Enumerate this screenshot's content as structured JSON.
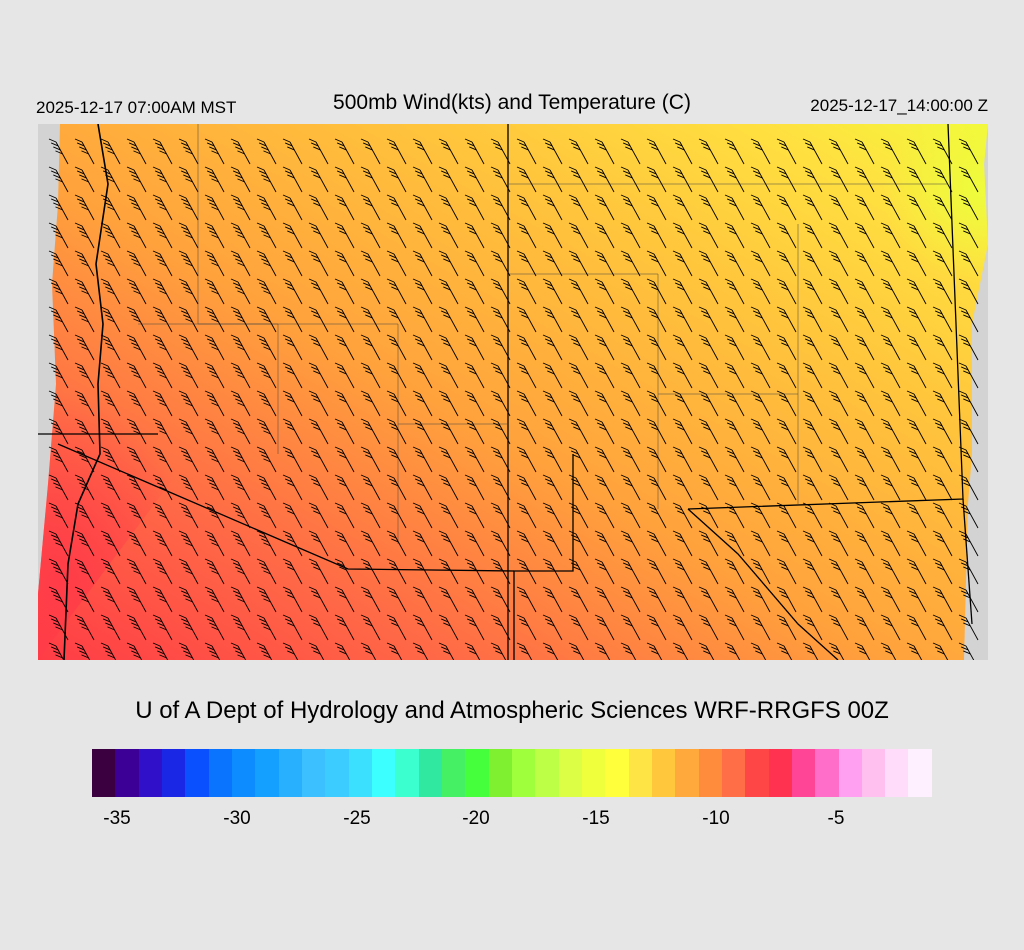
{
  "header": {
    "left": "2025-12-17 07:00AM MST",
    "title": "500mb Wind(kts) and Temperature (C)",
    "right": "2025-12-17_14:00:00 Z"
  },
  "credit": "U of A Dept of Hydrology and Atmospheric Sciences WRF-RRGFS 00Z",
  "colorbar": {
    "colors": [
      "#3b0040",
      "#3c0097",
      "#3010c8",
      "#1a28e6",
      "#0a50ff",
      "#0a74ff",
      "#0d8cff",
      "#14a0ff",
      "#28b0ff",
      "#3cc0ff",
      "#3cccff",
      "#3ce0ff",
      "#3cffff",
      "#3cffd0",
      "#30e8a0",
      "#46f064",
      "#46ff3c",
      "#7ef030",
      "#a0ff3c",
      "#bcff46",
      "#dcff46",
      "#f0ff3c",
      "#ffff3c",
      "#ffe446",
      "#ffc83c",
      "#ffa83c",
      "#ff8c3c",
      "#ff6e46",
      "#ff4646",
      "#ff3250",
      "#ff4696",
      "#ff6ec8",
      "#ffa0f0",
      "#ffc0f0",
      "#ffdcfa",
      "#fff0ff"
    ],
    "ticks": [
      "-35",
      "-30",
      "-25",
      "-20",
      "-15",
      "-10",
      "-5"
    ]
  }
}
